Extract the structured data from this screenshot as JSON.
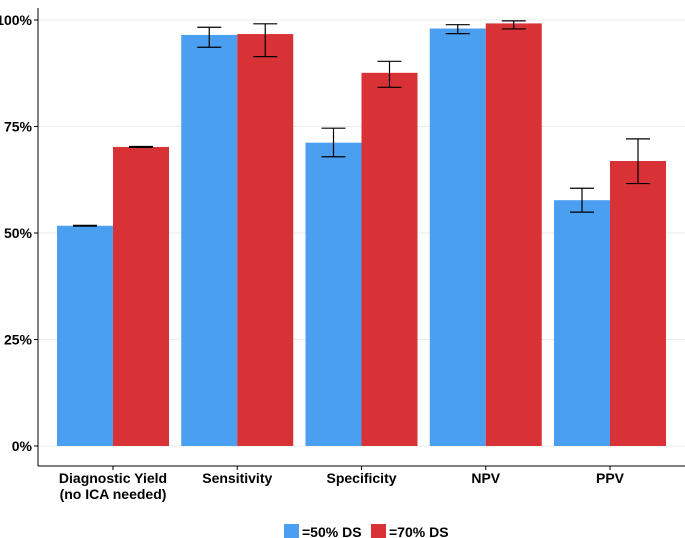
{
  "chart_data": {
    "type": "bar",
    "title": "",
    "xlabel": "",
    "ylabel": "",
    "ylim": [
      0,
      100
    ],
    "yticks": [
      0,
      25,
      50,
      75,
      100
    ],
    "ytick_labels": [
      "0%",
      "25%",
      "50%",
      "75%",
      "100%"
    ],
    "grid": "horizontal",
    "legend_position": "bottom",
    "categories": [
      [
        "Diagnostic Yield",
        "(no ICA needed)"
      ],
      [
        "Sensitivity"
      ],
      [
        "Specificity"
      ],
      [
        "NPV"
      ],
      [
        "PPV"
      ]
    ],
    "series": [
      {
        "name": "=50% DS",
        "color": "#4a9ff0",
        "values": [
          51.7,
          96.5,
          71.2,
          98.0,
          57.7
        ],
        "err_low": [
          51.6,
          93.6,
          67.9,
          96.8,
          54.9
        ],
        "err_high": [
          51.8,
          98.3,
          74.6,
          98.9,
          60.5
        ]
      },
      {
        "name": "=70% DS",
        "color": "#d93236",
        "values": [
          70.2,
          96.7,
          87.6,
          99.2,
          66.9
        ],
        "err_low": [
          70.1,
          91.4,
          84.2,
          97.9,
          61.6
        ],
        "err_high": [
          70.3,
          99.1,
          90.3,
          99.8,
          72.1
        ]
      }
    ]
  }
}
